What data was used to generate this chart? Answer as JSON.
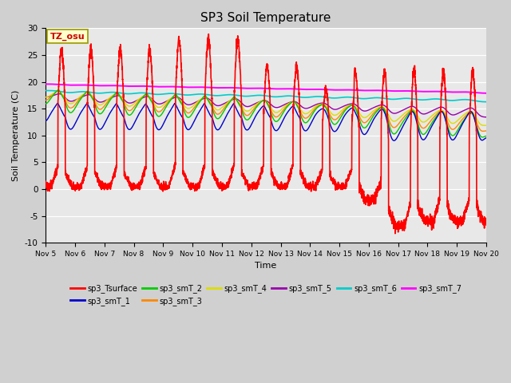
{
  "title": "SP3 Soil Temperature",
  "xlabel": "Time",
  "ylabel": "Soil Temperature (C)",
  "ylim": [
    -10,
    30
  ],
  "annotation": "TZ_osu",
  "plot_bg": "#e8e8e8",
  "fig_bg": "#d0d0d0",
  "series_colors": {
    "sp3_Tsurface": "#ff0000",
    "sp3_smT_1": "#0000cc",
    "sp3_smT_2": "#00cc00",
    "sp3_smT_3": "#ff8800",
    "sp3_smT_4": "#dddd00",
    "sp3_smT_5": "#9900aa",
    "sp3_smT_6": "#00cccc",
    "sp3_smT_7": "#ff00ff"
  },
  "xtick_labels": [
    "Nov 5",
    "Nov 6",
    "Nov 7",
    "Nov 8",
    "Nov 9",
    "Nov 10",
    "Nov 11",
    "Nov 12",
    "Nov 13",
    "Nov 14",
    "Nov 15",
    "Nov 16",
    "Nov 17",
    "Nov 18",
    "Nov 19",
    "Nov 20"
  ],
  "ytick_values": [
    -10,
    -5,
    0,
    5,
    10,
    15,
    20,
    25,
    30
  ]
}
